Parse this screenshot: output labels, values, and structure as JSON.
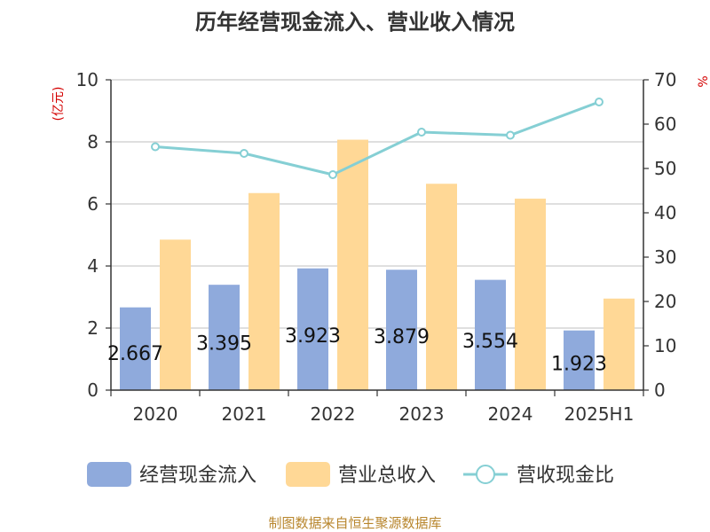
{
  "title": "历年经营现金流入、营业收入情况",
  "source": "制图数据来自恒生聚源数据库",
  "chart_data": {
    "type": "bar",
    "categories": [
      "2020",
      "2021",
      "2022",
      "2023",
      "2024",
      "2025H1"
    ],
    "left_axis": {
      "unit_label": "(亿元)",
      "range": [
        0,
        10
      ],
      "ticks": [
        0,
        2,
        4,
        6,
        8,
        10
      ]
    },
    "right_axis": {
      "unit_label": "%",
      "range": [
        0,
        70
      ],
      "ticks": [
        0,
        10,
        20,
        30,
        40,
        50,
        60,
        70
      ]
    },
    "grid": true,
    "legend_position": "bottom",
    "series": [
      {
        "name": "经营现金流入",
        "type": "bar",
        "axis": "left",
        "color": "#8faadc",
        "values": [
          2.667,
          3.395,
          3.923,
          3.879,
          3.554,
          1.923
        ],
        "labels": [
          "2.667",
          "3.395",
          "3.923",
          "3.879",
          "3.554",
          "1.923"
        ]
      },
      {
        "name": "营业总收入",
        "type": "bar",
        "axis": "left",
        "color": "#ffd896",
        "values": [
          4.85,
          6.35,
          8.07,
          6.65,
          6.17,
          2.95
        ]
      },
      {
        "name": "营收现金比",
        "type": "line",
        "axis": "right",
        "color": "#85cfd4",
        "values": [
          54.9,
          53.4,
          48.6,
          58.2,
          57.5,
          65.0
        ]
      }
    ]
  }
}
